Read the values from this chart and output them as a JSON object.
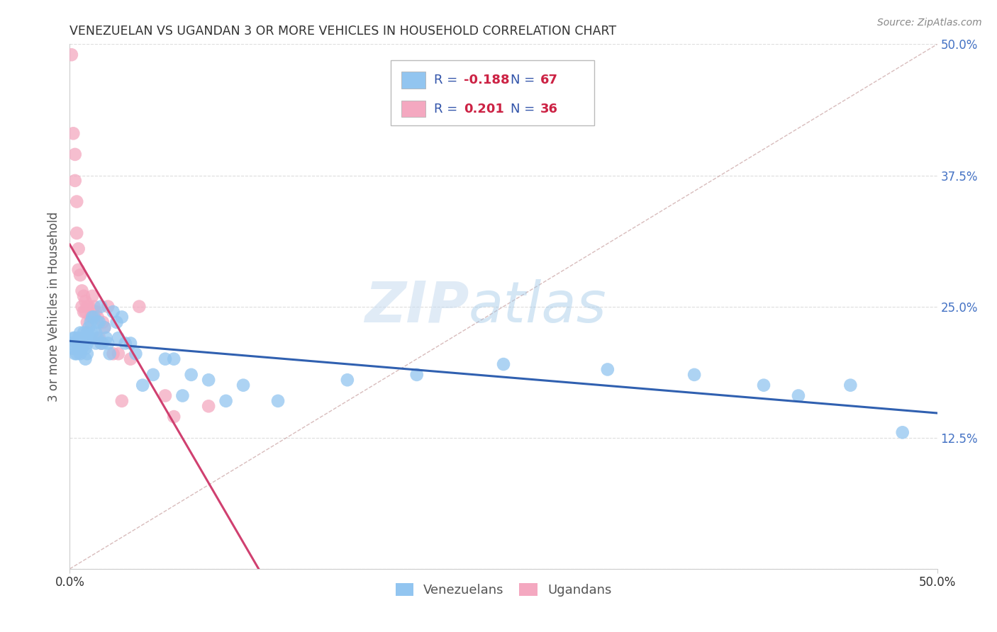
{
  "title": "VENEZUELAN VS UGANDAN 3 OR MORE VEHICLES IN HOUSEHOLD CORRELATION CHART",
  "source": "Source: ZipAtlas.com",
  "ylabel": "3 or more Vehicles in Household",
  "legend_label1": "Venezuelans",
  "legend_label2": "Ugandans",
  "R_venezuelan": -0.188,
  "N_venezuelan": 67,
  "R_ugandan": 0.201,
  "N_ugandan": 36,
  "color_venezuelan": "#92C5F0",
  "color_ugandan": "#F4A8C0",
  "line_color_venezuelan": "#3060B0",
  "line_color_ugandan": "#D04070",
  "diagonal_color": "#C8A0A0",
  "background_color": "#FFFFFF",
  "watermark_zip": "ZIP",
  "watermark_atlas": "atlas",
  "xlim": [
    0.0,
    0.5
  ],
  "ylim": [
    0.0,
    0.5
  ],
  "venezuelan_x": [
    0.001,
    0.002,
    0.002,
    0.003,
    0.003,
    0.004,
    0.004,
    0.005,
    0.005,
    0.006,
    0.006,
    0.006,
    0.007,
    0.007,
    0.008,
    0.008,
    0.009,
    0.009,
    0.009,
    0.01,
    0.01,
    0.01,
    0.011,
    0.011,
    0.012,
    0.012,
    0.013,
    0.013,
    0.014,
    0.015,
    0.015,
    0.016,
    0.016,
    0.017,
    0.018,
    0.018,
    0.019,
    0.02,
    0.021,
    0.022,
    0.023,
    0.025,
    0.027,
    0.028,
    0.03,
    0.032,
    0.035,
    0.038,
    0.042,
    0.048,
    0.055,
    0.06,
    0.065,
    0.07,
    0.08,
    0.09,
    0.1,
    0.12,
    0.16,
    0.2,
    0.25,
    0.31,
    0.36,
    0.4,
    0.42,
    0.45,
    0.48
  ],
  "venezuelan_y": [
    0.215,
    0.22,
    0.21,
    0.22,
    0.205,
    0.215,
    0.205,
    0.22,
    0.21,
    0.225,
    0.215,
    0.205,
    0.22,
    0.21,
    0.225,
    0.215,
    0.22,
    0.21,
    0.2,
    0.225,
    0.215,
    0.205,
    0.23,
    0.22,
    0.235,
    0.22,
    0.24,
    0.225,
    0.24,
    0.225,
    0.215,
    0.235,
    0.22,
    0.235,
    0.25,
    0.215,
    0.215,
    0.23,
    0.22,
    0.215,
    0.205,
    0.245,
    0.235,
    0.22,
    0.24,
    0.215,
    0.215,
    0.205,
    0.175,
    0.185,
    0.2,
    0.2,
    0.165,
    0.185,
    0.18,
    0.16,
    0.175,
    0.16,
    0.18,
    0.185,
    0.195,
    0.19,
    0.185,
    0.175,
    0.165,
    0.175,
    0.13
  ],
  "ugandan_x": [
    0.001,
    0.002,
    0.003,
    0.003,
    0.004,
    0.004,
    0.005,
    0.005,
    0.006,
    0.007,
    0.007,
    0.008,
    0.008,
    0.009,
    0.009,
    0.01,
    0.01,
    0.011,
    0.012,
    0.013,
    0.014,
    0.015,
    0.016,
    0.017,
    0.018,
    0.019,
    0.02,
    0.022,
    0.025,
    0.028,
    0.03,
    0.035,
    0.04,
    0.055,
    0.06,
    0.08
  ],
  "ugandan_y": [
    0.49,
    0.415,
    0.395,
    0.37,
    0.35,
    0.32,
    0.305,
    0.285,
    0.28,
    0.265,
    0.25,
    0.26,
    0.245,
    0.255,
    0.245,
    0.25,
    0.235,
    0.25,
    0.24,
    0.26,
    0.25,
    0.245,
    0.24,
    0.22,
    0.215,
    0.235,
    0.23,
    0.25,
    0.205,
    0.205,
    0.16,
    0.2,
    0.25,
    0.165,
    0.145,
    0.155
  ]
}
